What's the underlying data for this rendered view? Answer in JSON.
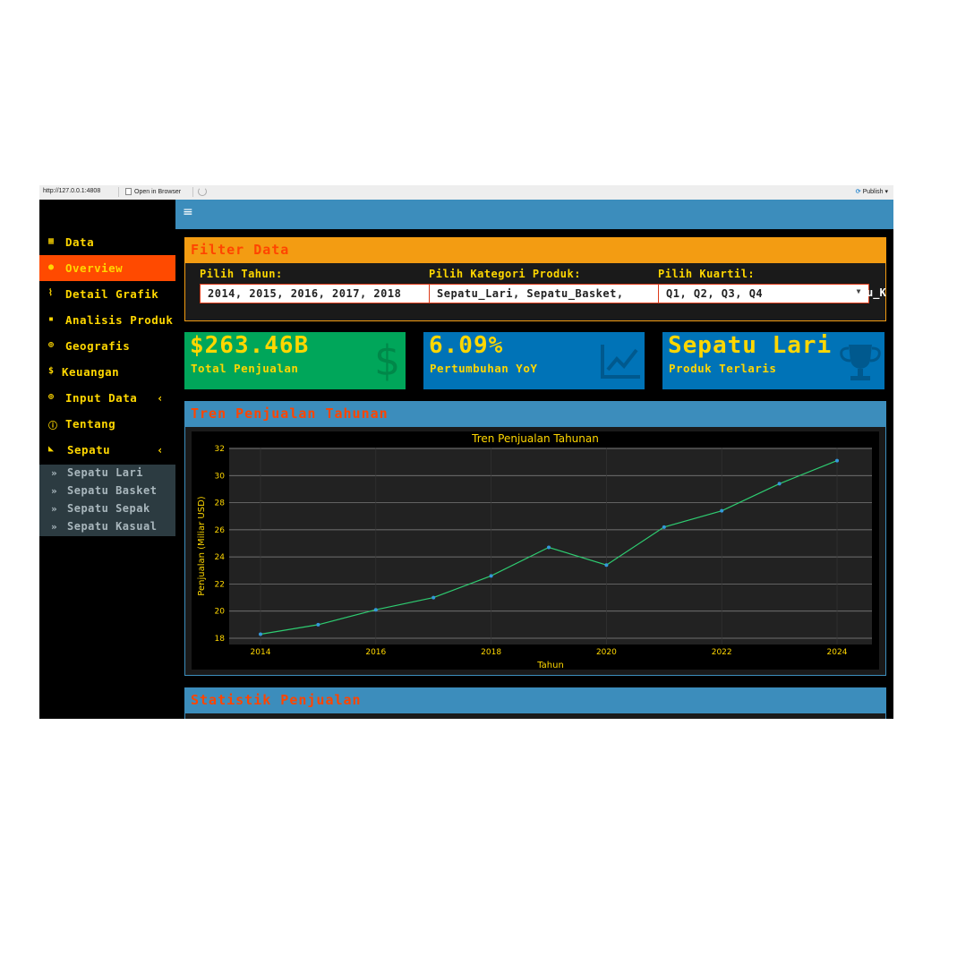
{
  "browser": {
    "url": "http://127.0.0.1:4808",
    "open_in_browser": "Open in Browser",
    "publish": "Publish"
  },
  "colors": {
    "header": "#3c8dbc",
    "accent_yellow": "#ffd700",
    "active_nav": "#ff4a00",
    "title_red": "#ff4500",
    "filter_header": "#f39c12",
    "box_green": "#00a65a",
    "box_blue": "#0073b7",
    "line_green": "#2ecc71",
    "marker_blue": "#3498db"
  },
  "sidebar": {
    "items": [
      {
        "label": "Data",
        "icon": "table-icon"
      },
      {
        "label": "Overview",
        "icon": "palette-icon",
        "active": true
      },
      {
        "label": "Detail Grafik",
        "icon": "line-chart-icon"
      },
      {
        "label": "Analisis Produk",
        "icon": "calendar-icon"
      },
      {
        "label": "Geografis",
        "icon": "globe-icon"
      },
      {
        "label": "Keuangan",
        "icon": "dollar-icon"
      },
      {
        "label": "Input Data",
        "icon": "plus-circle-icon",
        "expandable": true
      },
      {
        "label": "Tentang",
        "icon": "info-icon"
      },
      {
        "label": "Sepatu",
        "icon": "shoe-icon",
        "expandable": true
      }
    ],
    "subitems": [
      "Sepatu Lari",
      "Sepatu Basket",
      "Sepatu Sepak",
      "Sepatu Kasual"
    ]
  },
  "filter": {
    "title": "Filter Data",
    "year_label": "Pilih Tahun:",
    "year_value": "2014, 2015, 2016, 2017, 2018",
    "category_label": "Pilih Kategori Produk:",
    "category_value": "Sepatu_Lari, Sepatu_Basket, ",
    "quarter_label": "Pilih Kuartil:",
    "quarter_value": "Q1, Q2, Q3, Q4",
    "overflow_text": "u_K"
  },
  "value_boxes": [
    {
      "value": "$263.46B",
      "subtitle": "Total Penjualan",
      "icon": "dollar-icon",
      "color": "#00a65a"
    },
    {
      "value": "6.09%",
      "subtitle": "Pertumbuhan YoY",
      "icon": "line-chart-icon",
      "color": "#0073b7"
    },
    {
      "value": "Sepatu Lari",
      "subtitle": "Produk Terlaris",
      "icon": "trophy-icon",
      "color": "#0073b7"
    }
  ],
  "chart_box": {
    "title": "Tren Penjualan Tahunan"
  },
  "stats_box": {
    "title": "Statistik Penjualan"
  },
  "chart_data": {
    "type": "line",
    "title": "Tren Penjualan Tahunan",
    "xlabel": "Tahun",
    "ylabel": "Penjualan (Miliar USD)",
    "x": [
      2014,
      2015,
      2016,
      2017,
      2018,
      2019,
      2020,
      2021,
      2022,
      2023,
      2024
    ],
    "y": [
      18.3,
      19.0,
      20.1,
      21.0,
      22.6,
      24.7,
      23.4,
      26.2,
      27.4,
      29.4,
      31.1
    ],
    "xticks": [
      2014,
      2016,
      2018,
      2020,
      2022,
      2024
    ],
    "yticks": [
      18,
      20,
      22,
      24,
      26,
      28,
      30,
      32
    ],
    "xlim": [
      2014,
      2024
    ],
    "ylim": [
      18,
      32
    ],
    "grid": true,
    "legend": false
  }
}
